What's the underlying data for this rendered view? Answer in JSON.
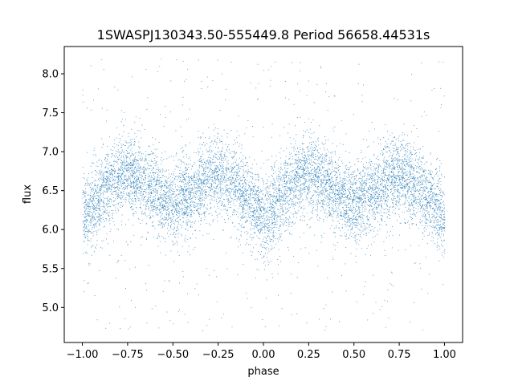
{
  "chart_data": {
    "type": "scatter",
    "title": "1SWASPJ130343.50-555449.8 Period 56658.44531s",
    "xlabel": "phase",
    "ylabel": "flux",
    "xlim": [
      -1.1,
      1.1
    ],
    "ylim": [
      4.55,
      8.35
    ],
    "xticks": [
      -1.0,
      -0.75,
      -0.5,
      -0.25,
      0.0,
      0.25,
      0.5,
      0.75,
      1.0
    ],
    "xtick_labels": [
      "−1.00",
      "−0.75",
      "−0.50",
      "−0.25",
      "0.00",
      "0.25",
      "0.50",
      "0.75",
      "1.00"
    ],
    "yticks": [
      5.0,
      5.5,
      6.0,
      6.5,
      7.0,
      7.5,
      8.0
    ],
    "ytick_labels": [
      "5.0",
      "5.5",
      "6.0",
      "6.5",
      "7.0",
      "7.5",
      "8.0"
    ],
    "grid": false,
    "point_color": "#1f77b4",
    "phase_range": [
      -1.0,
      1.0
    ],
    "mean_curve": {
      "phase": [
        0.0,
        0.1,
        0.2,
        0.25,
        0.35,
        0.45,
        0.5,
        0.6,
        0.7,
        0.75,
        0.85,
        0.95,
        1.0
      ],
      "flux": [
        6.12,
        6.45,
        6.68,
        6.72,
        6.6,
        6.38,
        6.33,
        6.45,
        6.68,
        6.7,
        6.55,
        6.3,
        6.15
      ]
    },
    "scatter_sigma": 0.25,
    "n_points": 9000
  }
}
